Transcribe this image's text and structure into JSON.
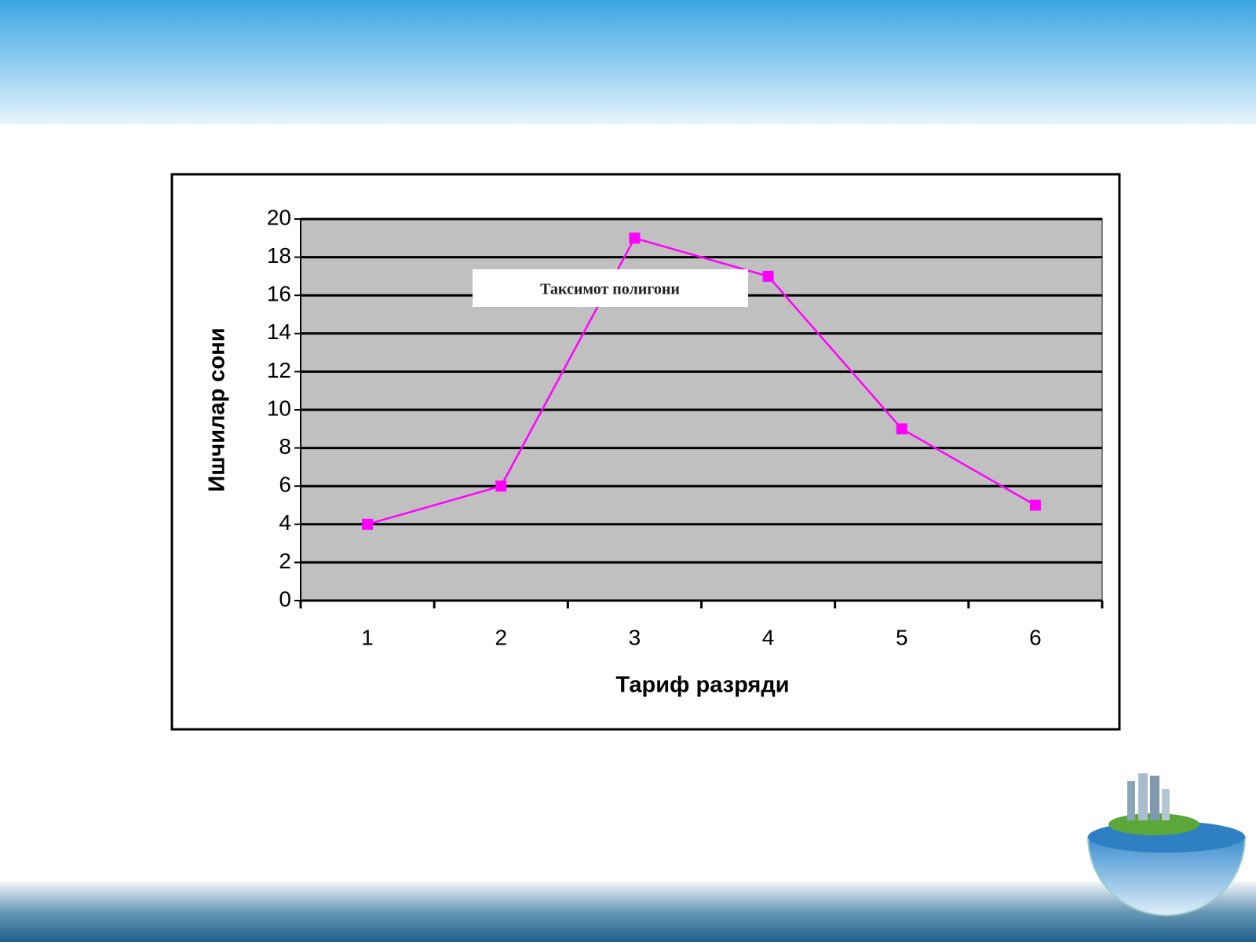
{
  "chart_data": {
    "type": "line",
    "title": "Таксимот полигони",
    "x_label": "Тариф разряди",
    "y_label": "Ишчилар сони",
    "categories": [
      "1",
      "2",
      "3",
      "4",
      "5",
      "6"
    ],
    "values": [
      4,
      6,
      19,
      17,
      9,
      5
    ],
    "color": "#ff00ff",
    "ylim": [
      0,
      20
    ],
    "yticks": [
      0,
      2,
      4,
      6,
      8,
      10,
      12,
      14,
      16,
      18,
      20
    ],
    "grid": true
  }
}
